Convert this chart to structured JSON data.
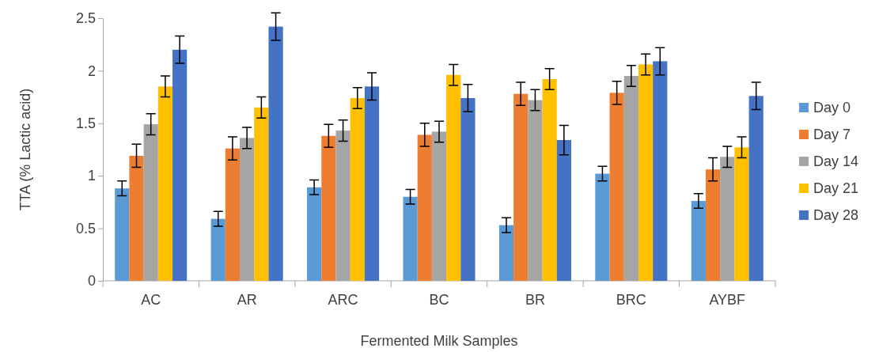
{
  "chart_data": {
    "type": "bar",
    "xlabel": "Fermented Milk Samples",
    "ylabel": "TTA (% Lactic acid)",
    "categories": [
      "AC",
      "AR",
      "ARC",
      "BC",
      "BR",
      "BRC",
      "AYBF"
    ],
    "series": [
      {
        "name": "Day 0",
        "color": "#5b9bd5",
        "values": [
          0.88,
          0.59,
          0.89,
          0.8,
          0.53,
          1.02,
          0.76
        ],
        "errors": [
          0.07,
          0.07,
          0.07,
          0.07,
          0.07,
          0.07,
          0.07
        ]
      },
      {
        "name": "Day 7",
        "color": "#ed7d31",
        "values": [
          1.19,
          1.26,
          1.38,
          1.39,
          1.78,
          1.79,
          1.06
        ],
        "errors": [
          0.11,
          0.11,
          0.11,
          0.11,
          0.11,
          0.11,
          0.11
        ]
      },
      {
        "name": "Day 14",
        "color": "#a5a5a5",
        "values": [
          1.49,
          1.36,
          1.43,
          1.42,
          1.72,
          1.95,
          1.18
        ],
        "errors": [
          0.1,
          0.1,
          0.1,
          0.1,
          0.1,
          0.1,
          0.1
        ]
      },
      {
        "name": "Day 21",
        "color": "#ffc000",
        "values": [
          1.85,
          1.65,
          1.74,
          1.96,
          1.92,
          2.06,
          1.27
        ],
        "errors": [
          0.1,
          0.1,
          0.1,
          0.1,
          0.1,
          0.1,
          0.1
        ]
      },
      {
        "name": "Day 28",
        "color": "#4472c4",
        "values": [
          2.2,
          2.42,
          1.85,
          1.74,
          1.34,
          2.09,
          1.76
        ],
        "errors": [
          0.13,
          0.13,
          0.13,
          0.13,
          0.14,
          0.13,
          0.13
        ]
      }
    ],
    "ylim": [
      0,
      2.5
    ],
    "yticks": [
      0,
      {
        "value": 0.5,
        "label": "0.5"
      },
      1,
      {
        "value": 1.5,
        "label": "1.5"
      },
      2,
      {
        "value": 2.5,
        "label": "2.5"
      }
    ],
    "grid": false,
    "legend": "right"
  }
}
